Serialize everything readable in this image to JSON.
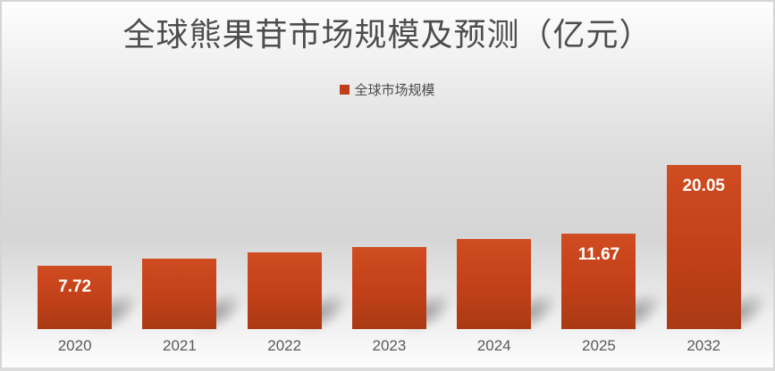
{
  "title": "全球熊果苷市场规模及预测（亿元）",
  "legend": {
    "label": "全球市场规模",
    "swatch_color": "#c13e1b"
  },
  "chart_data": {
    "type": "bar",
    "title": "全球熊果苷市场规模及预测（亿元）",
    "series_name": "全球市场规模",
    "categories": [
      "2020",
      "2021",
      "2022",
      "2023",
      "2024",
      "2025",
      "2032"
    ],
    "values": [
      7.72,
      8.6,
      9.4,
      10.0,
      11.0,
      11.67,
      20.05
    ],
    "data_labels": [
      "7.72",
      "",
      "",
      "",
      "",
      "11.67",
      "20.05"
    ],
    "xlabel": "",
    "ylabel": "",
    "ylim": [
      0,
      22
    ],
    "grid": false,
    "legend_position": "top-center",
    "bar_color_top": "#d04c21",
    "bar_color_bottom": "#a93a14",
    "data_label_color": "#ffffff",
    "axis_label_color": "#595959"
  }
}
